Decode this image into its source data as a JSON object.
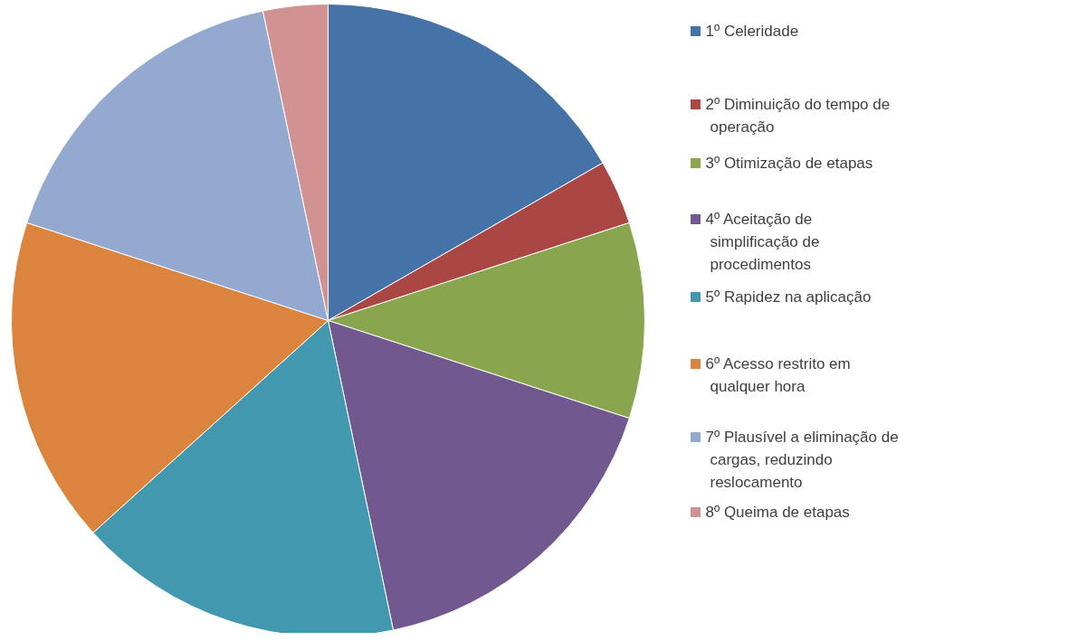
{
  "chart_data": {
    "type": "pie",
    "legend": "right",
    "categories": [
      "1º Celeridade",
      "2º Diminuição do tempo de operação",
      "3º Otimização de etapas",
      "4º Aceitação de simplificação de procedimentos",
      "5º Rapidez na aplicação",
      "6º Acesso restrito em qualquer hora",
      "7º Plausível a eliminação de cargas, reduzindo reslocamento",
      "8º Queima de etapas"
    ],
    "values": [
      16.7,
      3.3,
      10,
      16.7,
      16.6,
      16.7,
      16.7,
      3.3
    ],
    "colors": [
      "#4572a7",
      "#aa4643",
      "#89a54e",
      "#71588f",
      "#4198af",
      "#db843d",
      "#93a9cf",
      "#d19392"
    ]
  }
}
